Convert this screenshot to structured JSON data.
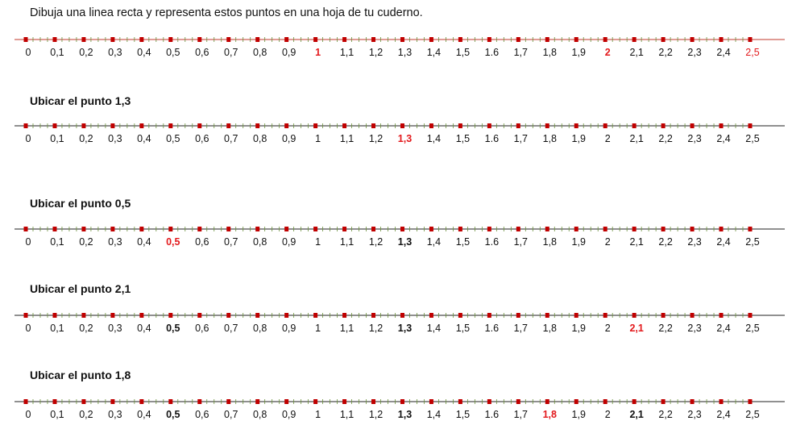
{
  "instruction": "Dibuja una linea recta y representa estos puntos en una hoja de tu cuderno.",
  "tick_labels": [
    "0",
    "0,1",
    "0,2",
    "0,3",
    "0,4",
    "0,5",
    "0,6",
    "0,7",
    "0,8",
    "0,9",
    "1",
    "1,1",
    "1,2",
    "1,3",
    "1,4",
    "1,5",
    "1.6",
    "1,7",
    "1,8",
    "1,9",
    "2",
    "2,1",
    "2,2",
    "2,3",
    "2,4",
    "2,5"
  ],
  "colors": {
    "axis_red": "#c0392b",
    "axis_black": "#222222",
    "mark": "#c00000",
    "highlight": "#e3191c"
  },
  "lines": [
    {
      "heading": "",
      "axis_color": "red",
      "highlight": [
        10,
        20,
        25
      ],
      "highlight_bold": [
        10,
        20
      ],
      "bold": []
    },
    {
      "heading": "Ubicar el punto 1,3",
      "axis_color": "black",
      "highlight": [
        13
      ],
      "highlight_bold": [
        13
      ],
      "bold": []
    },
    {
      "heading": "Ubicar el punto 0,5",
      "axis_color": "black",
      "highlight": [
        5
      ],
      "highlight_bold": [
        5
      ],
      "bold": [
        13
      ]
    },
    {
      "heading": "Ubicar el punto 2,1",
      "axis_color": "black",
      "highlight": [
        21
      ],
      "highlight_bold": [
        21
      ],
      "bold": [
        5,
        13
      ]
    },
    {
      "heading": "Ubicar el punto 1,8",
      "axis_color": "black",
      "highlight": [
        18
      ],
      "highlight_bold": [
        18
      ],
      "bold": [
        5,
        13,
        21
      ]
    }
  ]
}
